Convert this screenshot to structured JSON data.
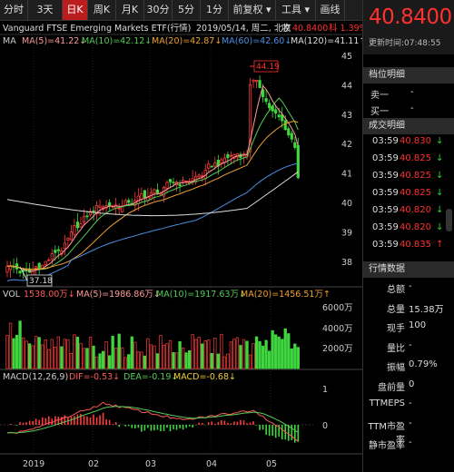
{
  "toolbar": {
    "items": [
      {
        "label": "分时",
        "w": 31
      },
      {
        "label": "3天",
        "w": 38
      },
      {
        "label": "日K",
        "w": 28,
        "active": true
      },
      {
        "label": "周K",
        "w": 31
      },
      {
        "label": "月K",
        "w": 31
      },
      {
        "label": "30分",
        "w": 31
      },
      {
        "label": "5分",
        "w": 31
      },
      {
        "label": "1分",
        "w": 31
      },
      {
        "label": "前复权 ▾",
        "w": 52
      },
      {
        "label": "工具 ▾",
        "w": 44
      },
      {
        "label": "画线",
        "w": 32
      }
    ]
  },
  "quote": {
    "title": "Vanguard FTSE Emerging Markets ETF(行情)",
    "date_info": "2019/05/14, 周二, 北京",
    "close_label": "收",
    "close_value": "40.8400",
    "change_pct": "科 1.39%",
    "big_price": "40.8400",
    "update_time": "更新时间:07:48:55"
  },
  "ma_legend": {
    "label": "MA",
    "items": [
      {
        "text": "MA(5)=41.22",
        "arrow": "↓",
        "color": "#ff9a9a"
      },
      {
        "text": "MA(10)=42.12",
        "arrow": "↓",
        "color": "#55cc55"
      },
      {
        "text": "MA(20)=42.87",
        "arrow": "↓",
        "color": "#f0a030"
      },
      {
        "text": "MA(60)=42.60",
        "arrow": "↓",
        "color": "#4a90e2"
      },
      {
        "text": "MA(120)=41.11",
        "arrow": "↑",
        "color": "#dddddd"
      }
    ]
  },
  "price_axis": [
    "45",
    "44",
    "43",
    "42",
    "41",
    "40",
    "39",
    "38"
  ],
  "price_markers": {
    "high": "44.19",
    "low": "37.18"
  },
  "vol_legend": {
    "label": "VOL",
    "items": [
      {
        "text": "1538.00万",
        "arrow": "↓",
        "color": "#ff5a5a"
      },
      {
        "text": "MA(5)=1986.86万",
        "arrow": "↓",
        "color": "#ff9a9a"
      },
      {
        "text": "MA(10)=1917.63万",
        "arrow": "↓",
        "color": "#55cc55"
      },
      {
        "text": "MA(20)=1456.51万",
        "arrow": "↑",
        "color": "#f0a030"
      }
    ]
  },
  "vol_axis": [
    "6000万",
    "4000万",
    "2000万"
  ],
  "macd_legend": {
    "label": "MACD(12,26,9)",
    "items": [
      {
        "text": "DIF=-0.53",
        "arrow": "↓",
        "color": "#ff5a5a"
      },
      {
        "text": "DEA=-0.19",
        "arrow": "↓",
        "color": "#55cc55"
      },
      {
        "text": "MACD=-0.68",
        "arrow": "↓",
        "color": "#f0d030"
      }
    ]
  },
  "macd_axis": [
    "1",
    "0"
  ],
  "x_axis": [
    "2019",
    "02",
    "03",
    "04",
    "05"
  ],
  "panel": {
    "depth_title": "档位明细",
    "sell1": "卖一",
    "buy1": "买一",
    "trades_title": "成交明细",
    "trades": [
      {
        "time": "03:59",
        "price": "40.830",
        "arrow": "↓"
      },
      {
        "time": "03:59",
        "price": "40.825",
        "arrow": "↓"
      },
      {
        "time": "03:59",
        "price": "40.825",
        "arrow": "↓"
      },
      {
        "time": "03:59",
        "price": "40.825",
        "arrow": "↓"
      },
      {
        "time": "03:59",
        "price": "40.820",
        "arrow": "↓"
      },
      {
        "time": "03:59",
        "price": "40.820",
        "arrow": "↓"
      },
      {
        "time": "03:59",
        "price": "40.835",
        "arrow": "↑"
      }
    ],
    "stats_title": "行情数据",
    "stats": [
      {
        "label": "总额",
        "value": "-"
      },
      {
        "label": "总量",
        "value": "15.38万"
      },
      {
        "label": "现手",
        "value": "100"
      },
      {
        "label": "量比",
        "value": "-"
      },
      {
        "label": "振幅",
        "value": "0.79%"
      },
      {
        "label": "盘前量",
        "value": "0"
      },
      {
        "label": "TTMEPS",
        "value": "-"
      },
      {
        "label": "TTM市盈率",
        "value": "-"
      },
      {
        "label": "静市盈率",
        "value": "-"
      }
    ]
  }
}
